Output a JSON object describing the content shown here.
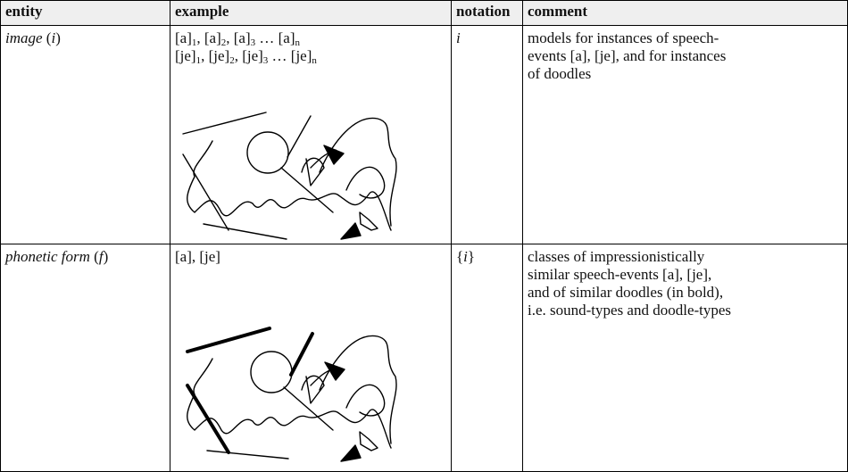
{
  "table": {
    "header": [
      "entity",
      "example",
      "notation",
      "comment"
    ],
    "rows": [
      {
        "entity": [
          {
            "i": "image"
          },
          " (",
          {
            "i": "i"
          },
          ")"
        ],
        "example": [
          [
            "[a]",
            {
              "sub": "1"
            },
            ", [a]",
            {
              "sub": "2"
            },
            ", [a]",
            {
              "sub": "3"
            },
            " … [a]",
            {
              "sub": "n"
            }
          ],
          [
            "[je]",
            {
              "sub": "1"
            },
            ", [je]",
            {
              "sub": "2"
            },
            ", [je]",
            {
              "sub": "3"
            },
            " … [je]",
            {
              "sub": "n"
            }
          ]
        ],
        "notation": [
          {
            "i": "i"
          }
        ],
        "comment": [
          "models for instances of speech-",
          "events [a], [je], and for instances",
          "of doodles"
        ]
      },
      {
        "entity": [
          {
            "i": "phonetic form"
          },
          " (",
          {
            "i": "f"
          },
          ")"
        ],
        "example": [
          [
            "[a], [je]"
          ]
        ],
        "notation": [
          "{",
          {
            "i": "i"
          },
          "}"
        ],
        "comment": [
          "classes of impressionistically",
          "similar speech-events [a], [je],",
          "and of similar doodles (in bold),",
          "i.e. sound-types and doodle-types"
        ]
      }
    ]
  }
}
